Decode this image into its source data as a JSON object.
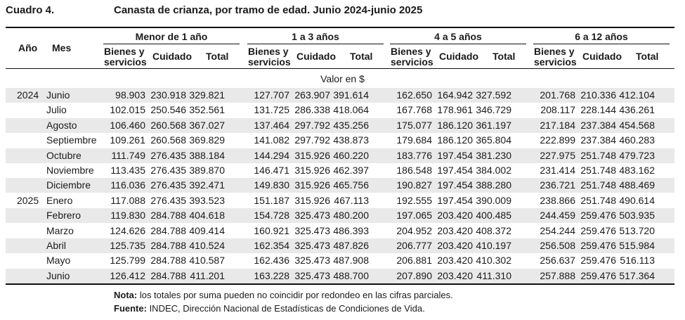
{
  "header": {
    "label": "Cuadro 4.",
    "title": "Canasta de crianza, por tramo de edad. Junio 2024-junio 2025"
  },
  "columns": {
    "year": "Año",
    "month": "Mes",
    "groups": [
      "Menor de 1 año",
      "1 a 3 años",
      "4 a 5 años",
      "6 a 12 años"
    ],
    "sub": [
      "Bienes y servicios",
      "Cuidado",
      "Total"
    ]
  },
  "unit": "Valor en $",
  "rows": [
    {
      "year": "2024",
      "month": "Junio",
      "v": [
        "98.903",
        "230.918",
        "329.821",
        "127.707",
        "263.907",
        "391.614",
        "162.650",
        "164.942",
        "327.592",
        "201.768",
        "210.336",
        "412.104"
      ]
    },
    {
      "year": "",
      "month": "Julio",
      "v": [
        "102.015",
        "250.546",
        "352.561",
        "131.725",
        "286.338",
        "418.064",
        "167.768",
        "178.961",
        "346.729",
        "208.117",
        "228.144",
        "436.261"
      ]
    },
    {
      "year": "",
      "month": "Agosto",
      "v": [
        "106.460",
        "260.568",
        "367.027",
        "137.464",
        "297.792",
        "435.256",
        "175.077",
        "186.120",
        "361.197",
        "217.184",
        "237.384",
        "454.568"
      ]
    },
    {
      "year": "",
      "month": "Septiembre",
      "v": [
        "109.261",
        "260.568",
        "369.829",
        "141.082",
        "297.792",
        "438.873",
        "179.684",
        "186.120",
        "365.804",
        "222.899",
        "237.384",
        "460.283"
      ]
    },
    {
      "year": "",
      "month": "Octubre",
      "v": [
        "111.749",
        "276.435",
        "388.184",
        "144.294",
        "315.926",
        "460.220",
        "183.776",
        "197.454",
        "381.230",
        "227.975",
        "251.748",
        "479.723"
      ]
    },
    {
      "year": "",
      "month": "Noviembre",
      "v": [
        "113.435",
        "276.435",
        "389.870",
        "146.471",
        "315.926",
        "462.397",
        "186.548",
        "197.454",
        "384.002",
        "231.414",
        "251.748",
        "483.162"
      ]
    },
    {
      "year": "",
      "month": "Diciembre",
      "v": [
        "116.036",
        "276.435",
        "392.471",
        "149.830",
        "315.926",
        "465.756",
        "190.827",
        "197.454",
        "388.280",
        "236.721",
        "251.748",
        "488.469"
      ]
    },
    {
      "year": "2025",
      "month": "Enero",
      "v": [
        "117.088",
        "276.435",
        "393.523",
        "151.187",
        "315.926",
        "467.113",
        "192.555",
        "197.454",
        "390.009",
        "238.866",
        "251.748",
        "490.614"
      ]
    },
    {
      "year": "",
      "month": "Febrero",
      "v": [
        "119.830",
        "284.788",
        "404.618",
        "154.728",
        "325.473",
        "480.200",
        "197.065",
        "203.420",
        "400.485",
        "244.459",
        "259.476",
        "503.935"
      ]
    },
    {
      "year": "",
      "month": "Marzo",
      "v": [
        "124.626",
        "284.788",
        "409.414",
        "160.921",
        "325.473",
        "486.393",
        "204.952",
        "203.420",
        "408.372",
        "254.244",
        "259.476",
        "513.720"
      ]
    },
    {
      "year": "",
      "month": "Abril",
      "v": [
        "125.735",
        "284.788",
        "410.524",
        "162.354",
        "325.473",
        "487.826",
        "206.777",
        "203.420",
        "410.197",
        "256.508",
        "259.476",
        "515.984"
      ]
    },
    {
      "year": "",
      "month": "Mayo",
      "v": [
        "125.799",
        "284.788",
        "410.587",
        "162.436",
        "325.473",
        "487.908",
        "206.881",
        "203.420",
        "410.302",
        "256.637",
        "259.476",
        "516.113"
      ]
    },
    {
      "year": "",
      "month": "Junio",
      "v": [
        "126.412",
        "284.788",
        "411.201",
        "163.228",
        "325.473",
        "488.700",
        "207.890",
        "203.420",
        "411.310",
        "257.888",
        "259.476",
        "517.364"
      ]
    }
  ],
  "notes": {
    "nota_label": "Nota:",
    "nota_text": " los totales por suma pueden no coincidir por redondeo en las cifras parciales.",
    "fuente_label": "Fuente:",
    "fuente_text": " INDEC, Dirección Nacional de Estadísticas de Condiciones de Vida."
  }
}
